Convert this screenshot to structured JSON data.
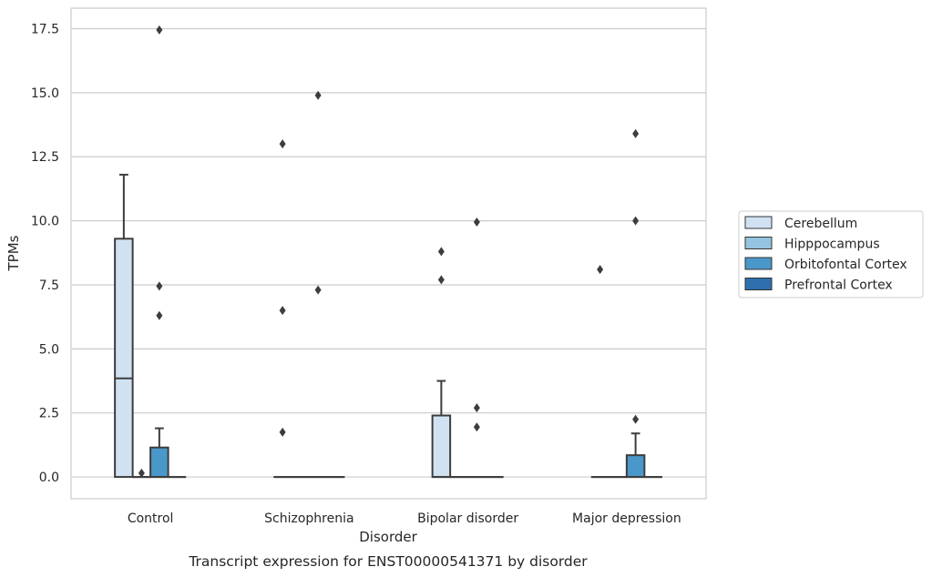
{
  "chart_data": {
    "type": "box",
    "caption": "Transcript expression for ENST00000541371 by disorder",
    "xlabel": "Disorder",
    "ylabel": "TPMs",
    "ylim": [
      -0.85,
      18.3
    ],
    "yticks": [
      "0.0",
      "2.5",
      "5.0",
      "7.5",
      "10.0",
      "12.5",
      "15.0",
      "17.5"
    ],
    "ytick_values": [
      0,
      2.5,
      5.0,
      7.5,
      10.0,
      12.5,
      15.0,
      17.5
    ],
    "grid": "horizontal",
    "legend_position": "right",
    "categories": [
      "Control",
      "Schizophrenia",
      "Bipolar disorder",
      "Major depression"
    ],
    "series": [
      {
        "name": "Cerebellum",
        "color": "#d0e1f2",
        "boxes": [
          {
            "q1": 0,
            "median": 3.85,
            "q3": 9.3,
            "whislo": 0,
            "whishi": 11.8,
            "fliers": []
          },
          {
            "q1": 0,
            "median": 0,
            "q3": 0,
            "whislo": 0,
            "whishi": 0,
            "fliers": [
              1.75,
              6.5,
              13.0
            ]
          },
          {
            "q1": 0,
            "median": 0,
            "q3": 2.4,
            "whislo": 0,
            "whishi": 3.75,
            "fliers": [
              7.7,
              8.8
            ]
          },
          {
            "q1": 0,
            "median": 0,
            "q3": 0,
            "whislo": 0,
            "whishi": 0,
            "fliers": [
              8.1
            ]
          }
        ]
      },
      {
        "name": "Hipppocampus",
        "color": "#94c4df",
        "boxes": [
          {
            "q1": 0,
            "median": 0,
            "q3": 0,
            "whislo": 0,
            "whishi": 0,
            "fliers": [
              0.15
            ]
          },
          {
            "q1": 0,
            "median": 0,
            "q3": 0,
            "whislo": 0,
            "whishi": 0,
            "fliers": []
          },
          {
            "q1": 0,
            "median": 0,
            "q3": 0,
            "whislo": 0,
            "whishi": 0,
            "fliers": []
          },
          {
            "q1": 0,
            "median": 0,
            "q3": 0,
            "whislo": 0,
            "whishi": 0,
            "fliers": []
          }
        ]
      },
      {
        "name": "Orbitofontal Cortex",
        "color": "#4a98c9",
        "boxes": [
          {
            "q1": 0,
            "median": 0,
            "q3": 1.15,
            "whislo": 0,
            "whishi": 1.9,
            "fliers": [
              6.3,
              7.45,
              17.45
            ]
          },
          {
            "q1": 0,
            "median": 0,
            "q3": 0,
            "whislo": 0,
            "whishi": 0,
            "fliers": [
              7.3,
              14.9
            ]
          },
          {
            "q1": 0,
            "median": 0,
            "q3": 0,
            "whislo": 0,
            "whishi": 0,
            "fliers": [
              1.95,
              2.7,
              9.95
            ]
          },
          {
            "q1": 0,
            "median": 0,
            "q3": 0.85,
            "whislo": 0,
            "whishi": 1.7,
            "fliers": [
              2.25,
              10.0,
              13.4
            ]
          }
        ]
      },
      {
        "name": "Prefrontal Cortex",
        "color": "#2e6fae",
        "boxes": [
          {
            "q1": 0,
            "median": 0,
            "q3": 0,
            "whislo": 0,
            "whishi": 0,
            "fliers": []
          },
          {
            "q1": 0,
            "median": 0,
            "q3": 0,
            "whislo": 0,
            "whishi": 0,
            "fliers": []
          },
          {
            "q1": 0,
            "median": 0,
            "q3": 0,
            "whislo": 0,
            "whishi": 0,
            "fliers": []
          },
          {
            "q1": 0,
            "median": 0,
            "q3": 0,
            "whislo": 0,
            "whishi": 0,
            "fliers": []
          }
        ]
      }
    ]
  }
}
